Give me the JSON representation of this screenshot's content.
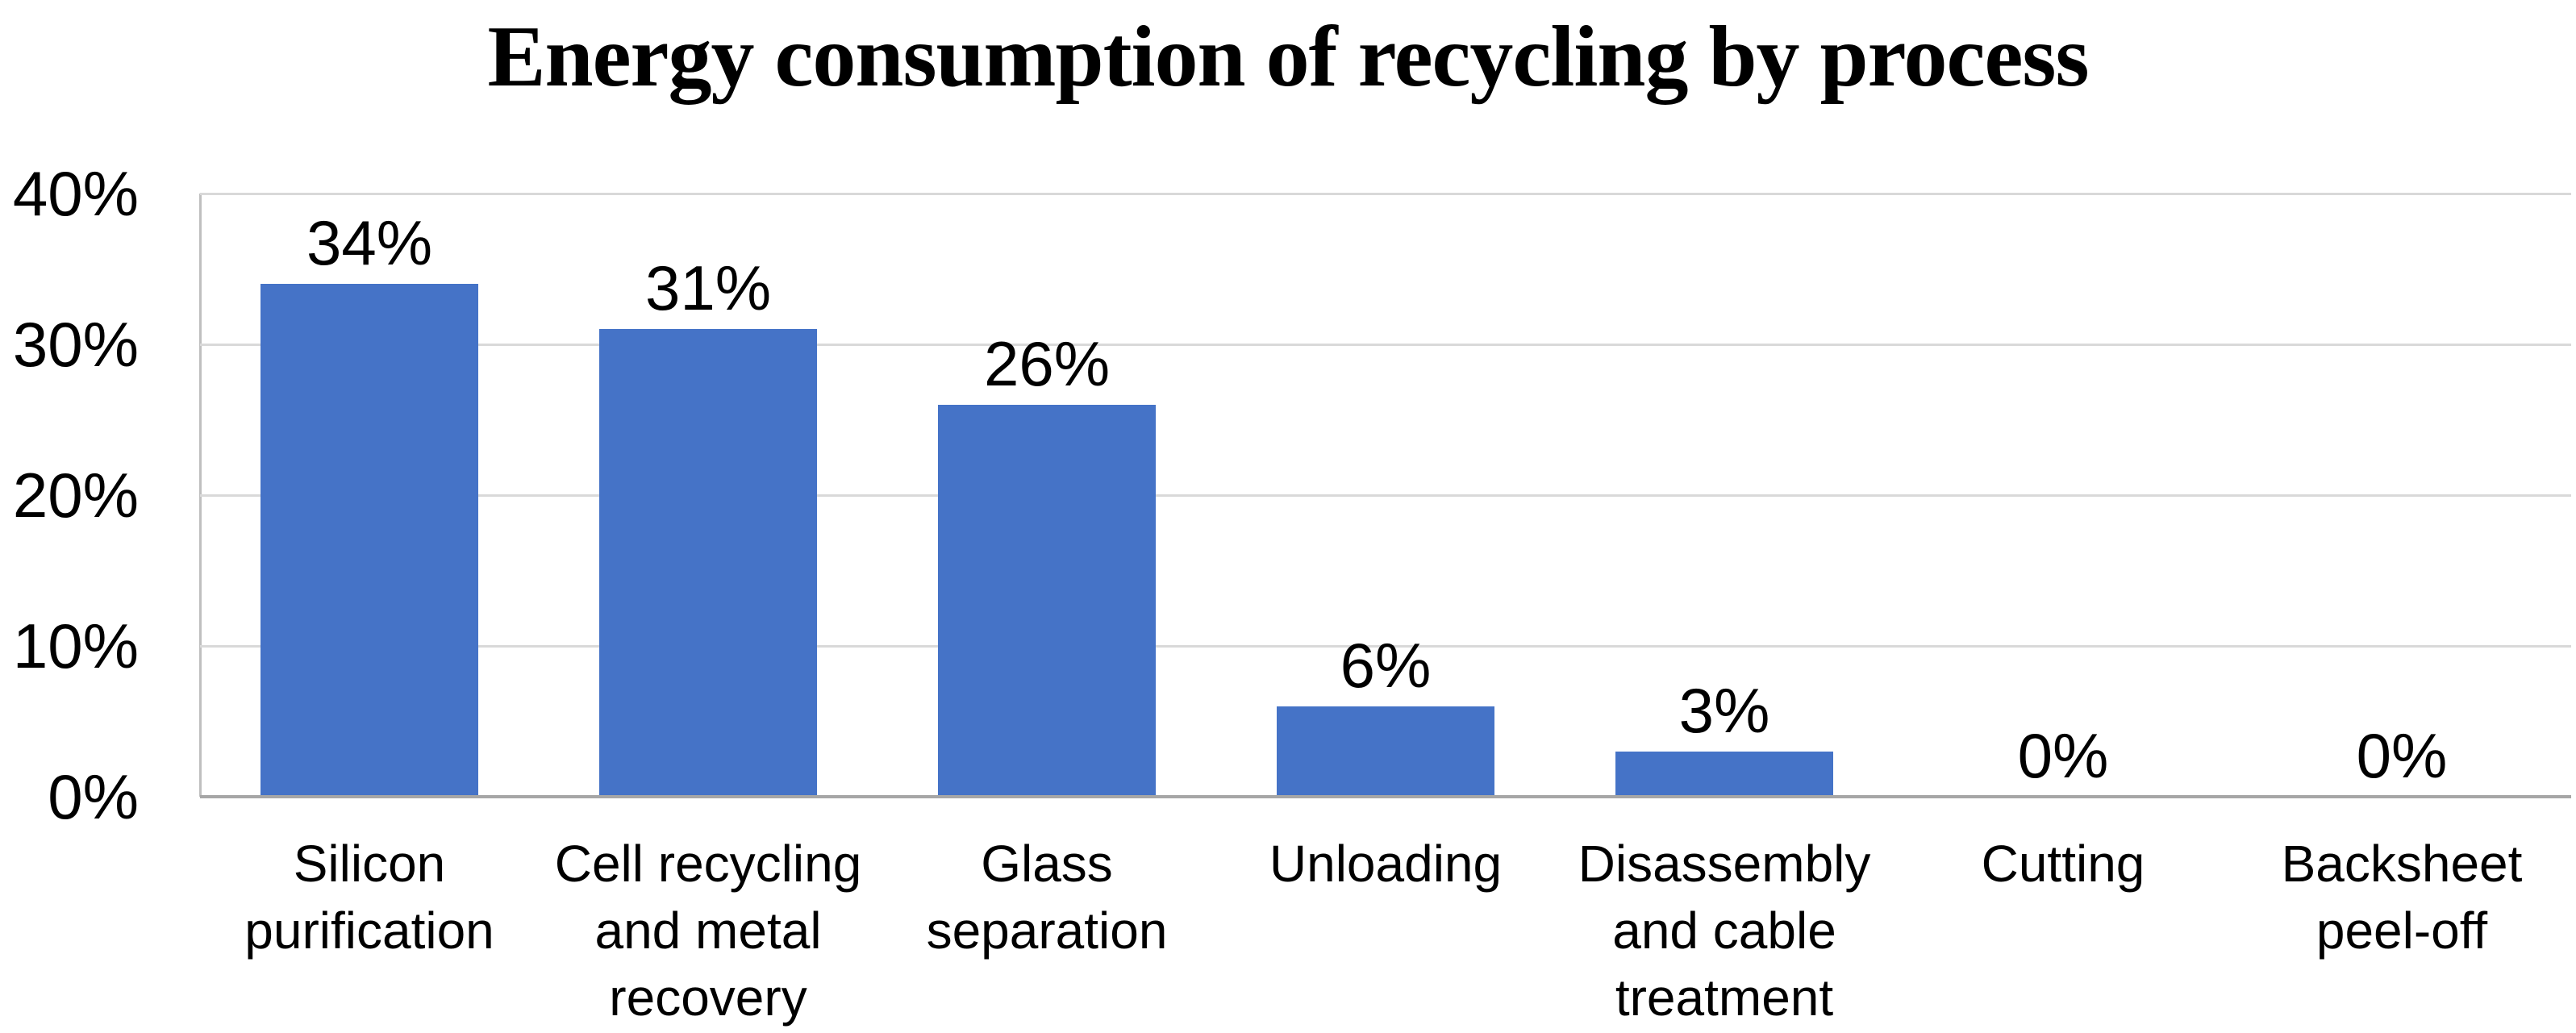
{
  "chart_data": {
    "type": "bar",
    "title": "Energy consumption of recycling by process",
    "categories": [
      "Silicon purification",
      "Cell recycling and metal recovery",
      "Glass separation",
      "Unloading",
      "Disassembly and cable treatment",
      "Cutting",
      "Backsheet peel-off"
    ],
    "category_lines": [
      [
        "Silicon",
        "purification"
      ],
      [
        "Cell recycling",
        "and metal",
        "recovery"
      ],
      [
        "Glass",
        "separation"
      ],
      [
        "Unloading"
      ],
      [
        "Disassembly",
        "and cable",
        "treatment"
      ],
      [
        "Cutting"
      ],
      [
        "Backsheet",
        "peel-off"
      ]
    ],
    "values": [
      34,
      31,
      26,
      6,
      3,
      0,
      0
    ],
    "value_labels": [
      "34%",
      "31%",
      "26%",
      "6%",
      "3%",
      "0%",
      "0%"
    ],
    "xlabel": "",
    "ylabel": "",
    "y_axis": {
      "ticks": [
        "40%",
        "30%",
        "20%",
        "10%",
        "0%"
      ],
      "min": 0,
      "max": 40,
      "grid": true
    },
    "legend": "none",
    "colors": {
      "bar": "#4573C7",
      "gridline": "#D9D9D9",
      "axis_line": "#A6A6A6",
      "plot_border": "#BFBFBF",
      "text": "#000000",
      "background": "#FFFFFF"
    }
  }
}
